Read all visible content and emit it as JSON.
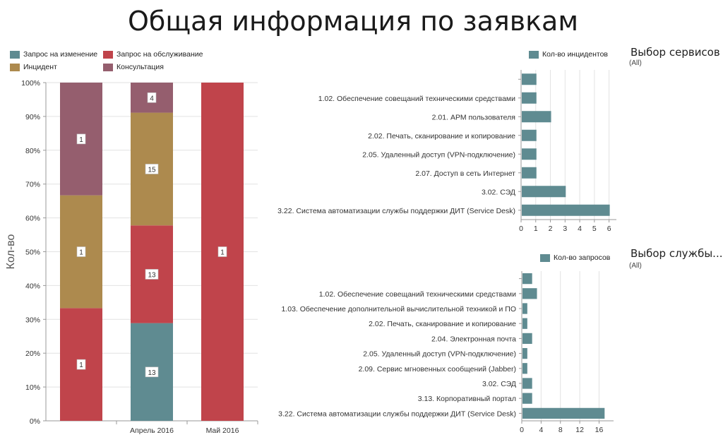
{
  "page_title": "Общая информация по заявкам",
  "colors": {
    "change_request": "#5f8b91",
    "service_request": "#c0444b",
    "incident": "#ad8a4e",
    "consultation": "#955e6e",
    "hbar": "#5f8b91"
  },
  "filters": {
    "services": {
      "title": "Выбор сервисов",
      "value": "(All)"
    },
    "service_desk": {
      "title": "Выбор службы...",
      "value": "(All)"
    }
  },
  "chart_data": [
    {
      "type": "bar",
      "stacked": "percent",
      "ylabel": "Кол-во",
      "yticks": [
        "0%",
        "10%",
        "20%",
        "30%",
        "40%",
        "50%",
        "60%",
        "70%",
        "80%",
        "90%",
        "100%"
      ],
      "ylim": [
        0,
        100
      ],
      "categories": [
        "",
        "Апрель 2016",
        "Май 2016"
      ],
      "legend_position": "top-left",
      "series": [
        {
          "name": "Запрос на изменение",
          "values": [
            0,
            13,
            0
          ]
        },
        {
          "name": "Запрос на обслуживание",
          "values": [
            1,
            13,
            1
          ]
        },
        {
          "name": "Инцидент",
          "values": [
            1,
            15,
            0
          ]
        },
        {
          "name": "Консультация",
          "values": [
            1,
            4,
            0
          ]
        }
      ]
    },
    {
      "type": "bar",
      "orientation": "horizontal",
      "legend": "Кол-во инцидентов",
      "legend_position": "top-right",
      "categories": [
        "",
        "1.02. Обеспечение совещаний техническими средствами",
        "2.01. АРМ пользователя",
        "2.02. Печать, сканирование и копирование",
        "2.05. Удаленный доступ (VPN-подключение)",
        "2.07. Доступ в сеть Интернет",
        "3.02. СЭД",
        "3.22. Система автоматизации службы поддержки ДИТ (Service Desk)"
      ],
      "values": [
        1,
        1,
        2,
        1,
        1,
        1,
        3,
        6
      ],
      "xlim": [
        0,
        6.5
      ],
      "xticks": [
        0,
        1,
        2,
        3,
        4,
        5,
        6
      ]
    },
    {
      "type": "bar",
      "orientation": "horizontal",
      "legend": "Кол-во запросов",
      "legend_position": "top-right",
      "categories": [
        "",
        "1.02. Обеспечение совещаний техническими средствами",
        "1.03. Обеспечение дополнительной вычислительной техникой и ПО",
        "2.02. Печать, сканирование и копирование",
        "2.04. Электронная почта",
        "2.05. Удаленный доступ (VPN-подключение)",
        "2.09. Сервис мгновенных сообщений (Jabber)",
        "3.02. СЭД",
        "3.13. Корпоративный портал",
        "3.22. Система автоматизации службы поддержки ДИТ (Service Desk)"
      ],
      "values": [
        2,
        3,
        1,
        1,
        2,
        1,
        1,
        2,
        2,
        17
      ],
      "xlim": [
        0,
        19
      ],
      "xticks": [
        0,
        4,
        8,
        12,
        16
      ]
    }
  ]
}
